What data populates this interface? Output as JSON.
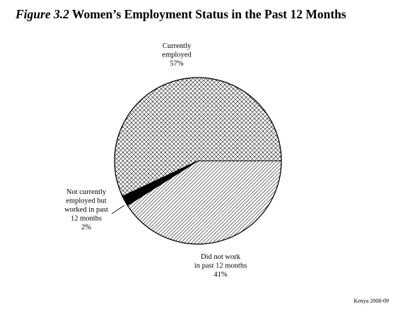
{
  "figure": {
    "number_label": "Figure 3.2",
    "title_text": "Women’s Employment Status in the Past 12 Months",
    "source_note": "Kenya 2008-09"
  },
  "chart_data": {
    "type": "pie",
    "slices": [
      {
        "label_lines": [
          "Currently",
          "employed"
        ],
        "value": 57,
        "value_label": "57%",
        "fill": "crosshatch"
      },
      {
        "label_lines": [
          "Not currently",
          "employed but",
          "worked in past",
          "12 months"
        ],
        "value": 2,
        "value_label": "2%",
        "fill": "solid-black"
      },
      {
        "label_lines": [
          "Did not work",
          "in past 12 months"
        ],
        "value": 41,
        "value_label": "41%",
        "fill": "diagonal-lines"
      }
    ],
    "start_angle_deg": 0,
    "direction": "counterclockwise",
    "colors": {
      "ink": "#000000",
      "background": "#ffffff"
    }
  }
}
